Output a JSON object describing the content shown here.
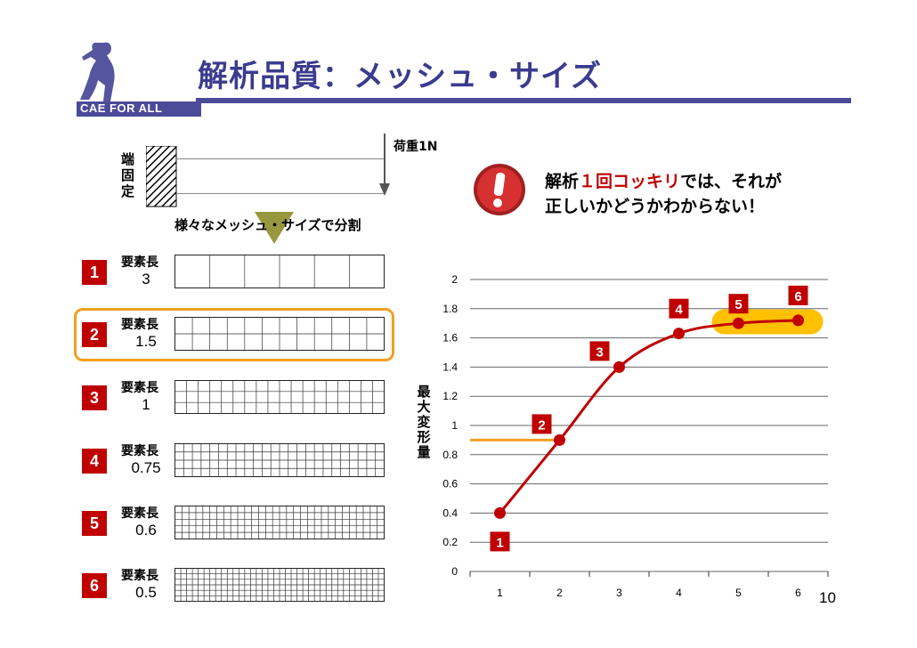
{
  "header": {
    "title": "解析品質：メッシュ・サイズ",
    "brand": "CAE FOR ALL"
  },
  "beam": {
    "fixed_label": "端固定",
    "load_label": "荷重1N",
    "split_label": "様々なメッシュ・サイズで分割"
  },
  "message": {
    "part1": "解析",
    "part2": "１回コッキリ",
    "part3": "では、それが",
    "line2": "正しいかどうかわからない！"
  },
  "meshes": [
    {
      "num": "1",
      "label": "要素長",
      "value": "3",
      "cols": 6,
      "rows": 1
    },
    {
      "num": "2",
      "label": "要素長",
      "value": "1.5",
      "cols": 12,
      "rows": 2
    },
    {
      "num": "3",
      "label": "要素長",
      "value": "1",
      "cols": 18,
      "rows": 3
    },
    {
      "num": "4",
      "label": "要素長",
      "value": "0.75",
      "cols": 24,
      "rows": 4
    },
    {
      "num": "5",
      "label": "要素長",
      "value": "0.6",
      "cols": 30,
      "rows": 5
    },
    {
      "num": "6",
      "label": "要素長",
      "value": "0.5",
      "cols": 36,
      "rows": 6
    }
  ],
  "chart_data": {
    "type": "line",
    "x": [
      1,
      2,
      3,
      4,
      5,
      6
    ],
    "values": [
      0.4,
      0.9,
      1.4,
      1.63,
      1.7,
      1.72
    ],
    "point_labels": [
      "1",
      "2",
      "3",
      "4",
      "5",
      "6"
    ],
    "ylabel": "最大変形量",
    "xticks": [
      "1",
      "2",
      "3",
      "4",
      "5",
      "6"
    ],
    "yticks": [
      "0",
      "0.2",
      "0.4",
      "0.6",
      "0.8",
      "1",
      "1.2",
      "1.4",
      "1.6",
      "1.8",
      "2"
    ],
    "ylim": [
      0,
      2
    ],
    "xlim": [
      0.5,
      6.5
    ],
    "grid": true,
    "line_color": "#c00000",
    "reference_line_color": "#f0a020",
    "highlight_color": "#ffc000"
  },
  "page_number": "10"
}
